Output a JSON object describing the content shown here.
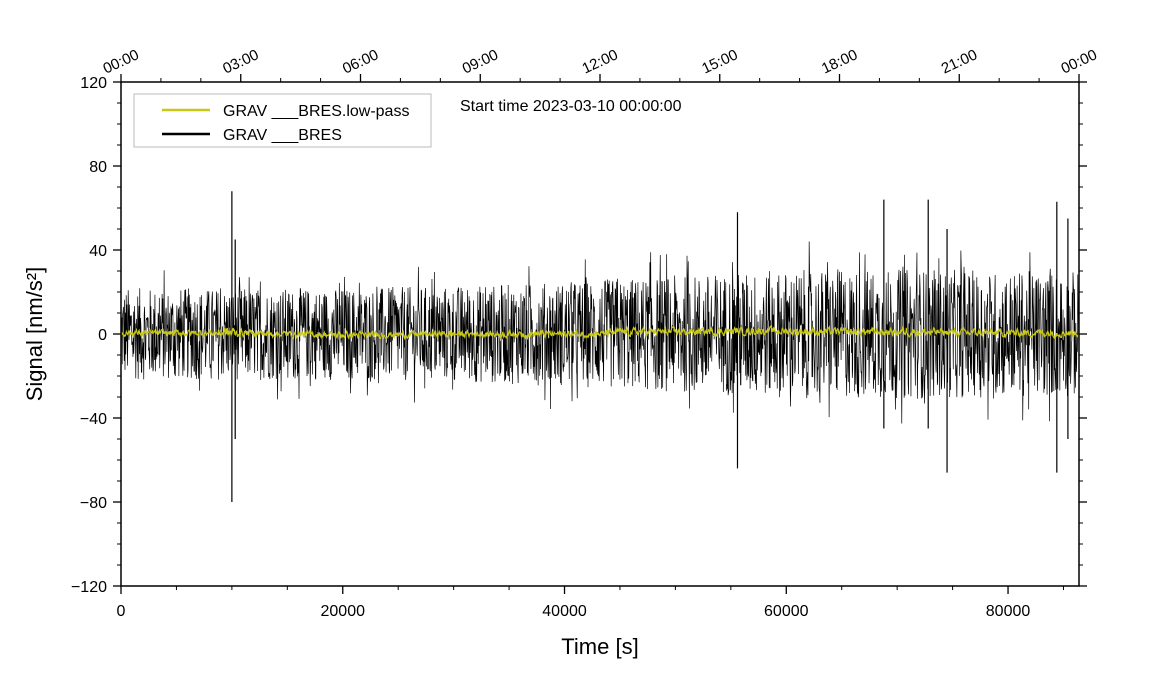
{
  "chart_data": {
    "type": "line",
    "ylabel": "Signal [nm/s²]",
    "xlabel": "Time [s]",
    "annotation": "Start time 2023-03-10 00:00:00",
    "xlim": [
      0,
      86400
    ],
    "ylim": [
      -120,
      120
    ],
    "x_ticks": [
      0,
      20000,
      40000,
      60000,
      80000
    ],
    "y_ticks": [
      -120,
      -80,
      -40,
      0,
      40,
      80,
      120
    ],
    "top_axis": {
      "ticks_seconds": [
        0,
        10800,
        21600,
        32400,
        43200,
        54000,
        64800,
        75600,
        86400
      ],
      "labels": [
        "00:00",
        "03:00",
        "06:00",
        "09:00",
        "12:00",
        "15:00",
        "18:00",
        "21:00",
        "00:00"
      ]
    },
    "legend_position": "top-left",
    "series": [
      {
        "name": "GRAV ___BRES.low-pass",
        "color": "#c8c818",
        "envelope_x": [
          0,
          3600,
          7200,
          9000,
          9900,
          10200,
          11000,
          14400,
          21600,
          28800,
          36000,
          43200,
          45000,
          50400,
          57600,
          64800,
          70000,
          71000,
          72000,
          79200,
          86400
        ],
        "envelope_amplitude": [
          2.5,
          2.5,
          2.5,
          3,
          7,
          4,
          3,
          2.5,
          2.5,
          2.5,
          2.5,
          2.5,
          3,
          3,
          3,
          3,
          3,
          4,
          3,
          3,
          3
        ],
        "envelope_offset": [
          0.5,
          0.5,
          0.5,
          0.5,
          0.5,
          0.5,
          0.5,
          0,
          -0.5,
          0,
          0,
          0,
          1,
          1,
          1.5,
          1,
          1,
          1.5,
          1,
          0.5,
          0.5
        ]
      },
      {
        "name": "GRAV ___BRES",
        "color": "#000000",
        "envelope_x": [
          0,
          7200,
          14400,
          21600,
          28800,
          36000,
          43200,
          50400,
          57600,
          64800,
          72000,
          79200,
          86400
        ],
        "envelope_amplitude": [
          22,
          22,
          22,
          22,
          23,
          24,
          26,
          28,
          30,
          31,
          31,
          30,
          30
        ],
        "spikes": [
          {
            "x": 10000,
            "min": -80,
            "max": 68
          },
          {
            "x": 10300,
            "min": -50,
            "max": 45
          },
          {
            "x": 55600,
            "min": -64,
            "max": 58
          },
          {
            "x": 68800,
            "min": -45,
            "max": 64
          },
          {
            "x": 72800,
            "min": -45,
            "max": 64
          },
          {
            "x": 74500,
            "min": -66,
            "max": 50
          },
          {
            "x": 84400,
            "min": -66,
            "max": 63
          },
          {
            "x": 85400,
            "min": -50,
            "max": 55
          }
        ]
      }
    ]
  }
}
